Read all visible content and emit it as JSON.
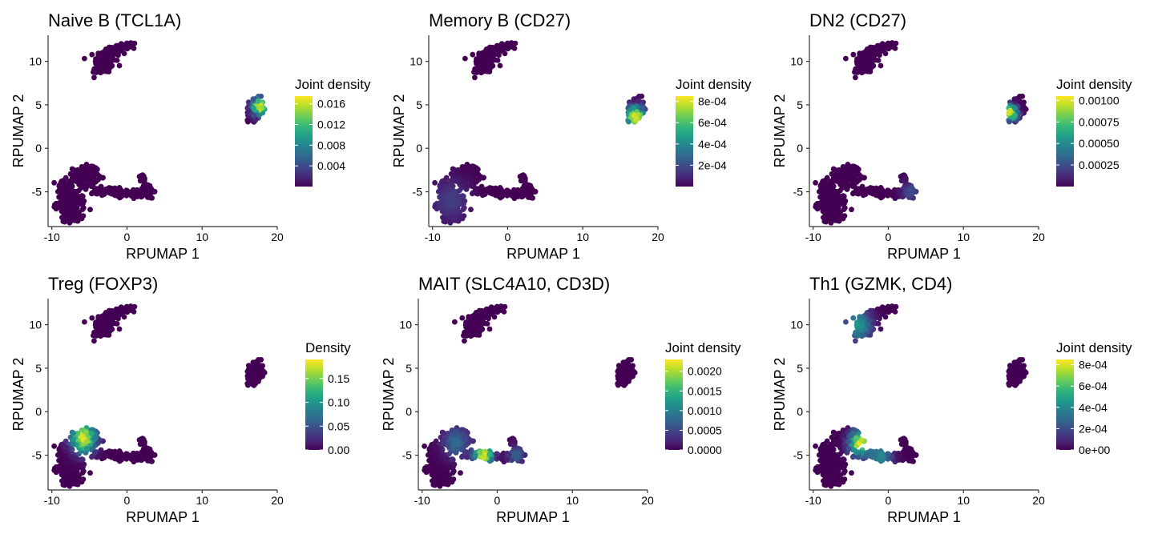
{
  "colors": {
    "viridis": [
      "#440154",
      "#482878",
      "#3e4989",
      "#31688e",
      "#26828e",
      "#1f9e89",
      "#35b779",
      "#6ece58",
      "#b5de2b",
      "#fde725"
    ],
    "axis": "#333333",
    "text": "#000000"
  },
  "chart_data": [
    {
      "type": "scatter",
      "title": "Naive B (TCL1A)",
      "xlabel": "RPUMAP 1",
      "ylabel": "RPUMAP 2",
      "xlim": [
        -10.5,
        20
      ],
      "ylim": [
        -9,
        13
      ],
      "xticks": [
        -10,
        0,
        10,
        20
      ],
      "yticks": [
        -5,
        0,
        5,
        10
      ],
      "xtick_labels": [
        "-10",
        "0",
        "10",
        "20"
      ],
      "ytick_labels": [
        "-5",
        "0",
        "5",
        "10"
      ],
      "legend": {
        "title": "Joint density",
        "position": "right",
        "min": 0,
        "max": 0.0175,
        "ticks": [
          0.004,
          0.008,
          0.012,
          0.016
        ],
        "labels": [
          "0.004",
          "0.008",
          "0.012",
          "0.016"
        ]
      },
      "hotspots": [
        {
          "x": 17.6,
          "y": 4.8,
          "sigma": 0.75,
          "value": 0.0168
        }
      ]
    },
    {
      "type": "scatter",
      "title": "Memory B (CD27)",
      "xlabel": "RPUMAP 1",
      "ylabel": "RPUMAP 2",
      "xlim": [
        -10.5,
        20
      ],
      "ylim": [
        -9,
        13
      ],
      "xticks": [
        -10,
        0,
        10,
        20
      ],
      "yticks": [
        -5,
        0,
        5,
        10
      ],
      "xtick_labels": [
        "-10",
        "0",
        "10",
        "20"
      ],
      "ytick_labels": [
        "-5",
        "0",
        "5",
        "10"
      ],
      "legend": {
        "title": "Joint density",
        "position": "right",
        "min": 0,
        "max": 0.00085,
        "ticks": [
          0.0002,
          0.0004,
          0.0006,
          0.0008
        ],
        "labels": [
          "2e-04",
          "4e-04",
          "6e-04",
          "8e-04"
        ]
      },
      "hotspots": [
        {
          "x": 17.0,
          "y": 3.6,
          "sigma": 0.9,
          "value": 0.00082
        },
        {
          "x": -7.5,
          "y": -6.0,
          "sigma": 1.8,
          "value": 0.00016
        }
      ]
    },
    {
      "type": "scatter",
      "title": "DN2 (CD27)",
      "xlabel": "RPUMAP 1",
      "ylabel": "RPUMAP 2",
      "xlim": [
        -10.5,
        20
      ],
      "ylim": [
        -9,
        13
      ],
      "xticks": [
        -10,
        0,
        10,
        20
      ],
      "yticks": [
        -5,
        0,
        5,
        10
      ],
      "xtick_labels": [
        "-10",
        "0",
        "10",
        "20"
      ],
      "ytick_labels": [
        "-5",
        "0",
        "5",
        "10"
      ],
      "legend": {
        "title": "Joint density",
        "position": "right",
        "min": 0,
        "max": 0.00105,
        "ticks": [
          0.00025,
          0.0005,
          0.00075,
          0.001
        ],
        "labels": [
          "0.00025",
          "0.00050",
          "0.00075",
          "0.00100"
        ]
      },
      "hotspots": [
        {
          "x": 16.3,
          "y": 4.1,
          "sigma": 0.65,
          "value": 0.00102
        },
        {
          "x": 3.0,
          "y": -5.0,
          "sigma": 0.9,
          "value": 0.00025
        }
      ]
    },
    {
      "type": "scatter",
      "title": "Treg (FOXP3)",
      "xlabel": "RPUMAP 1",
      "ylabel": "RPUMAP 2",
      "xlim": [
        -10.5,
        20
      ],
      "ylim": [
        -9,
        13
      ],
      "xticks": [
        -10,
        0,
        10,
        20
      ],
      "yticks": [
        -5,
        0,
        5,
        10
      ],
      "xtick_labels": [
        "-10",
        "0",
        "10",
        "20"
      ],
      "ytick_labels": [
        "-5",
        "0",
        "5",
        "10"
      ],
      "legend": {
        "title": "Density",
        "position": "right",
        "min": 0,
        "max": 0.19,
        "ticks": [
          0,
          0.05,
          0.1,
          0.15
        ],
        "labels": [
          "0.00",
          "0.05",
          "0.10",
          "0.15"
        ]
      },
      "hotspots": [
        {
          "x": -5.8,
          "y": -3.0,
          "sigma": 1.2,
          "value": 0.185
        }
      ]
    },
    {
      "type": "scatter",
      "title": "MAIT (SLC4A10, CD3D)",
      "xlabel": "RPUMAP 1",
      "ylabel": "RPUMAP 2",
      "xlim": [
        -10.5,
        20
      ],
      "ylim": [
        -9,
        13
      ],
      "xticks": [
        -10,
        0,
        10,
        20
      ],
      "yticks": [
        -5,
        0,
        5,
        10
      ],
      "xtick_labels": [
        "-10",
        "0",
        "10",
        "20"
      ],
      "ytick_labels": [
        "-5",
        "0",
        "5",
        "10"
      ],
      "legend": {
        "title": "Joint density",
        "position": "right",
        "min": 0,
        "max": 0.0023,
        "ticks": [
          0,
          0.0005,
          0.001,
          0.0015,
          0.002
        ],
        "labels": [
          "0.0000",
          "0.0005",
          "0.0010",
          "0.0015",
          "0.0020"
        ]
      },
      "hotspots": [
        {
          "x": -1.8,
          "y": -5.0,
          "sigma": 0.9,
          "value": 0.0022
        },
        {
          "x": -5.5,
          "y": -3.5,
          "sigma": 1.3,
          "value": 0.0008
        },
        {
          "x": 2.5,
          "y": -5.0,
          "sigma": 0.8,
          "value": 0.0007
        }
      ]
    },
    {
      "type": "scatter",
      "title": "Th1 (GZMK, CD4)",
      "xlabel": "RPUMAP 1",
      "ylabel": "RPUMAP 2",
      "xlim": [
        -10.5,
        20
      ],
      "ylim": [
        -9,
        13
      ],
      "xticks": [
        -10,
        0,
        10,
        20
      ],
      "yticks": [
        -5,
        0,
        5,
        10
      ],
      "xtick_labels": [
        "-10",
        "0",
        "10",
        "20"
      ],
      "ytick_labels": [
        "-5",
        "0",
        "5",
        "10"
      ],
      "legend": {
        "title": "Joint density",
        "position": "right",
        "min": 0,
        "max": 0.00085,
        "ticks": [
          0,
          0.0002,
          0.0004,
          0.0006,
          0.0008
        ],
        "labels": [
          "0e+00",
          "2e-04",
          "4e-04",
          "6e-04",
          "8e-04"
        ]
      },
      "hotspots": [
        {
          "x": -3.8,
          "y": -3.6,
          "sigma": 1.0,
          "value": 0.00082
        },
        {
          "x": -4.0,
          "y": 10.0,
          "sigma": 1.3,
          "value": 0.00045
        },
        {
          "x": -1.0,
          "y": -5.2,
          "sigma": 1.1,
          "value": 0.0004
        }
      ]
    }
  ]
}
